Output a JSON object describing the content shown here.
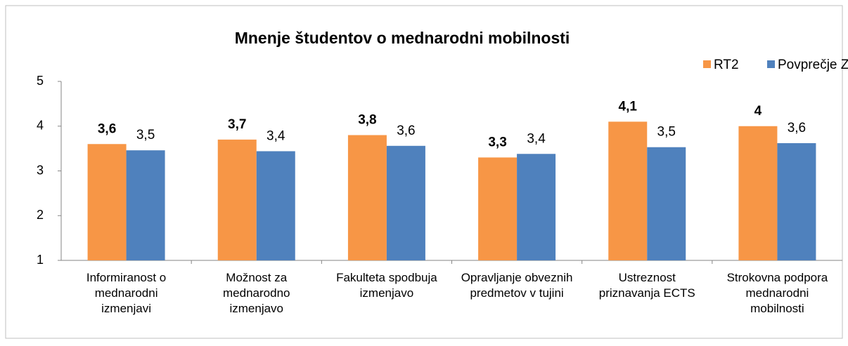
{
  "chart_data": {
    "type": "bar",
    "title": "Mnenje študentov o mednarodni mobilnosti",
    "categories": [
      "Informiranost o\nmednarodni\nizmenjavi",
      "Možnost za\nmednarodno\nizmenjavo",
      "Fakulteta spodbuja\nizmenjavo",
      "Opravljanje obveznih\npredmetov v tujini",
      "Ustreznost\npriznavanja ECTS",
      "Strokovna podpora\nmednarodni\nmobilnosti"
    ],
    "series": [
      {
        "name": "RT2",
        "color": "#f79646",
        "values": [
          3.6,
          3.7,
          3.8,
          3.3,
          4.1,
          4
        ],
        "value_labels": [
          "3,6",
          "3,7",
          "3,8",
          "3,3",
          "4,1",
          "4"
        ]
      },
      {
        "name": "Povprečje ZF",
        "color": "#4f81bd",
        "values": [
          3.46,
          3.44,
          3.56,
          3.38,
          3.53,
          3.62
        ],
        "value_labels": [
          "3,5",
          "3,4",
          "3,6",
          "3,4",
          "3,5",
          "3,6"
        ]
      }
    ],
    "ylim": [
      1,
      5
    ],
    "yticks": [
      1,
      2,
      3,
      4,
      5
    ],
    "grid": false,
    "legend": "top-right"
  }
}
